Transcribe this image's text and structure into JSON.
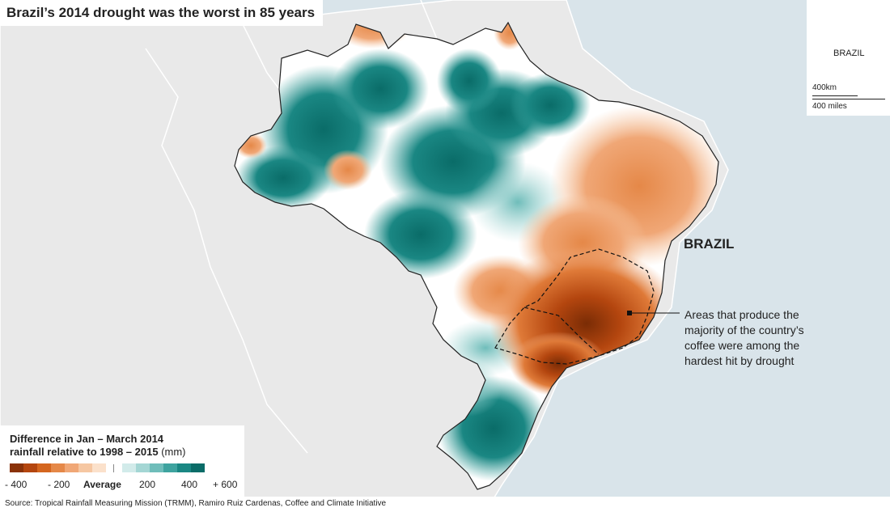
{
  "title": "Brazil’s 2014 drought was the worst in 85 years",
  "locator": {
    "label": "BRAZIL",
    "scale_km": "400km",
    "scale_miles": "400 miles"
  },
  "map": {
    "country_label": "BRAZIL",
    "annotation": "Areas that produce the majority of the country’s coffee were among the hardest hit by drought"
  },
  "legend": {
    "title_line1": "Difference in Jan – March 2014",
    "title_line2": "rainfall relative to 1998 – 2015",
    "unit": "(mm)",
    "dry_colors": [
      "#8a3208",
      "#b4460f",
      "#d4661f",
      "#e58848",
      "#f0a776",
      "#f6c7a2",
      "#fbe1cb"
    ],
    "wet_colors": [
      "#d2ebea",
      "#a4d6d4",
      "#6fbdba",
      "#3ea39f",
      "#1a8783",
      "#0a6c68"
    ],
    "ticks": {
      "minus400": "- 400",
      "minus200": "- 200",
      "average": "Average",
      "plus200": "200",
      "plus400": "400",
      "plus600": "+ 600"
    }
  },
  "source": "Source: Tropical Rainfall Measuring Mission (TRMM), Ramiro Ruiz Cardenas, Coffee and Climate Initiative"
}
